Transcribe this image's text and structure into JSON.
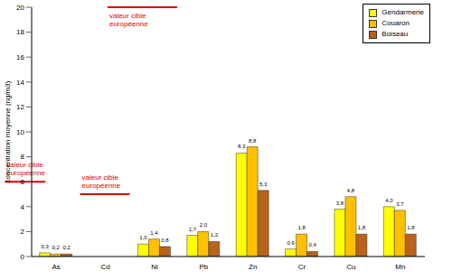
{
  "chart_data": {
    "type": "bar",
    "y_label": "concentration moyenne (ng/m3)",
    "categories": [
      "As",
      "Cd",
      "Ni",
      "Pb",
      "Zn",
      "Cr",
      "Cu",
      "Mn"
    ],
    "series": [
      {
        "name": "Gendarmerie",
        "color": "#ffff00",
        "values": [
          0.3,
          null,
          1.0,
          1.7,
          8.3,
          0.6,
          3.8,
          4.0
        ],
        "value_labels": [
          "0,3",
          null,
          "1,0",
          "1,7",
          "8,3",
          "0,6",
          "3,8",
          "4,0"
        ]
      },
      {
        "name": "Couaron",
        "color": "#ffc000",
        "values": [
          0.2,
          null,
          1.4,
          2.0,
          8.8,
          1.8,
          4.8,
          3.7
        ],
        "value_labels": [
          "0,2",
          null,
          "1,4",
          "2,0",
          "8,8",
          "1,8",
          "4,8",
          "3,7"
        ]
      },
      {
        "name": "Boiseau",
        "color": "#b8621b",
        "values": [
          0.2,
          null,
          0.8,
          1.2,
          5.3,
          0.4,
          1.8,
          1.8
        ],
        "value_labels": [
          "0,2",
          null,
          "0,8",
          "1,2",
          "5,3",
          "0,4",
          "1,8",
          "1,8"
        ]
      }
    ],
    "ylim": [
      0,
      20
    ],
    "yticks": [
      0,
      2,
      4,
      6,
      8,
      10,
      12,
      14,
      16,
      18,
      20
    ],
    "grid": false,
    "legend": "upper right",
    "data_labels": true,
    "annotations": [
      {
        "text": "valeur cible européenne",
        "category": "As",
        "value": 6
      },
      {
        "text": "valeur cible européenne",
        "category": "Cd",
        "value": 5
      },
      {
        "text": "valeur cible européenne",
        "category": "Ni",
        "value": 20
      }
    ]
  }
}
